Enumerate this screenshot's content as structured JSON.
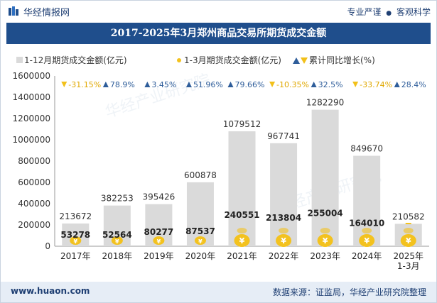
{
  "header": {
    "brand": "华经情报网",
    "tag1": "专业严谨",
    "tag2": "客观科学",
    "tag_separator": "●"
  },
  "footer": {
    "site": "www.huaon.com",
    "source": "数据来源：证监局，华经产业研究院整理"
  },
  "colors": {
    "title_bg": "#1f4e8c",
    "bar": "#dadada",
    "coin": "#f3c21e",
    "arrow_up": "#2e5d9a",
    "arrow_down": "#f2c01a",
    "footer_bg": "#e6edf6"
  },
  "chart_data": {
    "type": "bar",
    "title": "2017-2025年3月郑州商品交易所期货成交金额",
    "categories": [
      "2017年",
      "2018年",
      "2019年",
      "2020年",
      "2021年",
      "2022年",
      "2023年",
      "2024年",
      "2025年\n1-3月"
    ],
    "series": [
      {
        "name": "1-12月期货成交金额(亿元)",
        "type": "bar",
        "values": [
          213672,
          382253,
          395426,
          600878,
          1079512,
          967741,
          1282290,
          849670,
          210582
        ]
      },
      {
        "name": "1-3月期货成交金额(亿元)",
        "type": "marker",
        "values": [
          53278,
          52564,
          80277,
          87537,
          240551,
          213804,
          255004,
          164010,
          null
        ]
      }
    ],
    "growth": {
      "name": "累计同比增长(%)",
      "values": [
        "-31.15%",
        "78.9%",
        "3.45%",
        "51.96%",
        "79.66%",
        "-10.35%",
        "32.5%",
        "-33.74%",
        "28.4%"
      ],
      "direction": [
        "down",
        "up",
        "up",
        "up",
        "up",
        "down",
        "up",
        "down",
        "up"
      ]
    },
    "yaxis": {
      "min": 0,
      "max": 1600000,
      "ticks": [
        0,
        200000,
        400000,
        600000,
        800000,
        1000000,
        1200000,
        1400000,
        1600000
      ]
    },
    "legend_position": "top",
    "grid": false
  }
}
